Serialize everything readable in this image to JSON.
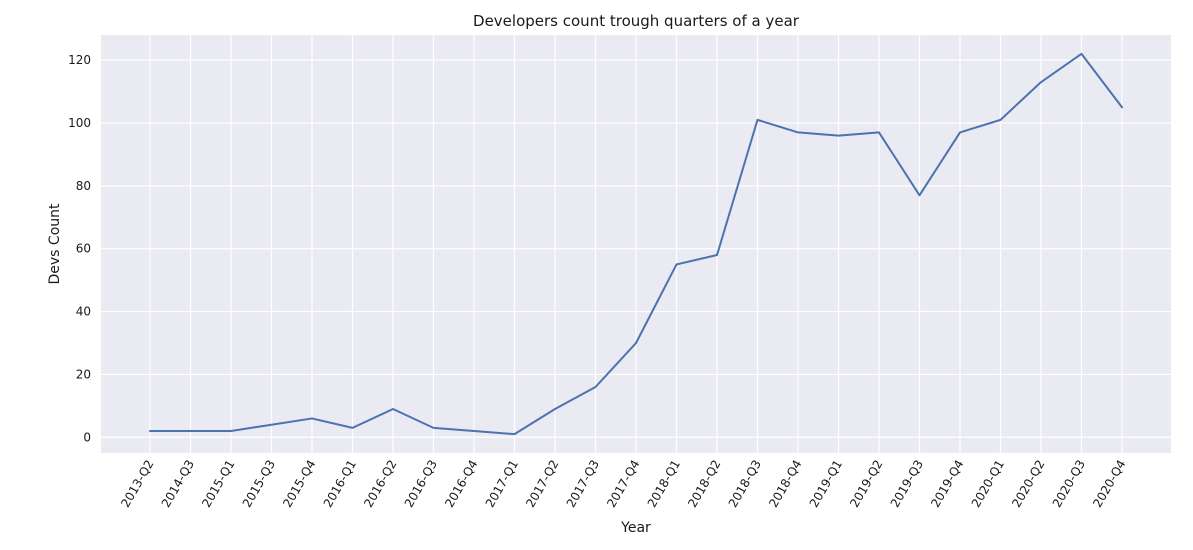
{
  "chart_data": {
    "type": "line",
    "title": "Developers count trough quarters of a year",
    "xlabel": "Year",
    "ylabel": "Devs Count",
    "categories": [
      "2013-Q2",
      "2014-Q3",
      "2015-Q1",
      "2015-Q3",
      "2015-Q4",
      "2016-Q1",
      "2016-Q2",
      "2016-Q3",
      "2016-Q4",
      "2017-Q1",
      "2017-Q2",
      "2017-Q3",
      "2017-Q4",
      "2018-Q1",
      "2018-Q2",
      "2018-Q3",
      "2018-Q4",
      "2019-Q1",
      "2019-Q2",
      "2019-Q3",
      "2019-Q4",
      "2020-Q1",
      "2020-Q2",
      "2020-Q3",
      "2020-Q4"
    ],
    "series": [
      {
        "values": [
          2,
          2,
          2,
          4,
          6,
          3,
          9,
          3,
          2,
          1,
          9,
          16,
          30,
          55,
          58,
          101,
          97,
          96,
          97,
          77,
          97,
          101,
          113,
          122,
          105
        ]
      }
    ],
    "yticks": [
      0,
      20,
      40,
      60,
      80,
      100,
      120
    ],
    "ylim": [
      -5,
      128
    ],
    "grid": true,
    "line_color": "#4c72b0",
    "background_color": "#eaeaf2"
  }
}
